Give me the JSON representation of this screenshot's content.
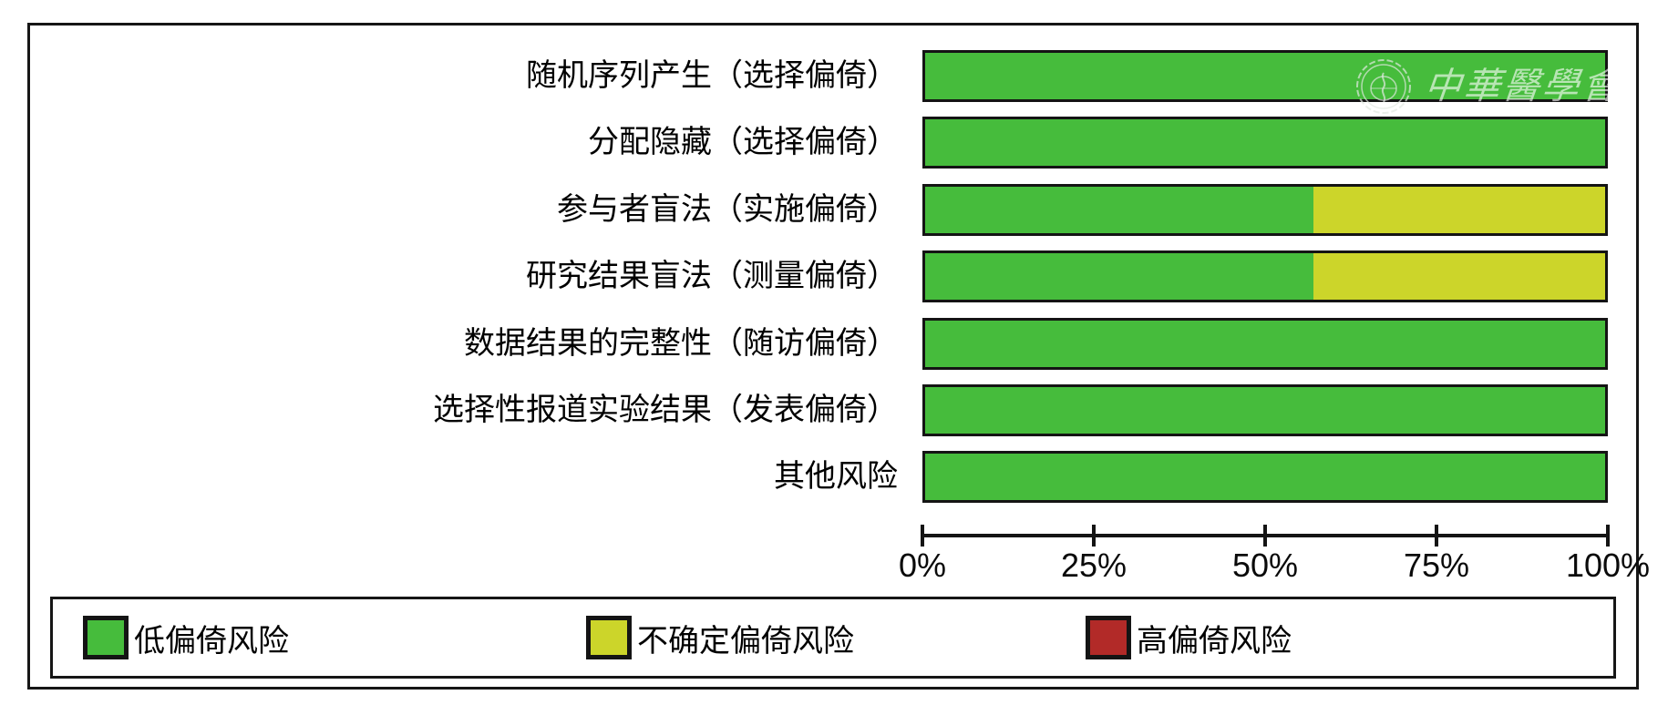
{
  "chart_data": {
    "type": "bar",
    "orientation": "horizontal",
    "stacked": true,
    "title": "",
    "categories": [
      "随机序列产生（选择偏倚）",
      "分配隐藏（选择偏倚）",
      "参与者盲法（实施偏倚）",
      "研究结果盲法（测量偏倚）",
      "数据结果的完整性（随访偏倚）",
      "选择性报道实验结果（发表偏倚）",
      "其他风险"
    ],
    "series": [
      {
        "name": "低偏倚风险",
        "color": "#46bc3c",
        "values": [
          100,
          100,
          57.1,
          57.1,
          100,
          100,
          100
        ]
      },
      {
        "name": "不确定偏倚风险",
        "color": "#ccd52a",
        "values": [
          0,
          0,
          42.9,
          42.9,
          0,
          0,
          0
        ]
      },
      {
        "name": "高偏倚风险",
        "color": "#b22a28",
        "values": [
          0,
          0,
          0,
          0,
          0,
          0,
          0
        ]
      }
    ],
    "x_axis": {
      "tick_labels": [
        "0%",
        "25%",
        "50%",
        "75%",
        "100%"
      ],
      "range": [
        0,
        100
      ],
      "unit": "%",
      "grid": false
    },
    "legend": {
      "position": "bottom",
      "items": [
        {
          "label": "低偏倚风险",
          "color": "#46bc3c"
        },
        {
          "label": "不确定偏倚风险",
          "color": "#ccd52a"
        },
        {
          "label": "高偏倚风险",
          "color": "#b22a28"
        }
      ]
    }
  },
  "watermark": {
    "text": "中華醫學會",
    "emblem": "chinese-medical-association-seal"
  }
}
